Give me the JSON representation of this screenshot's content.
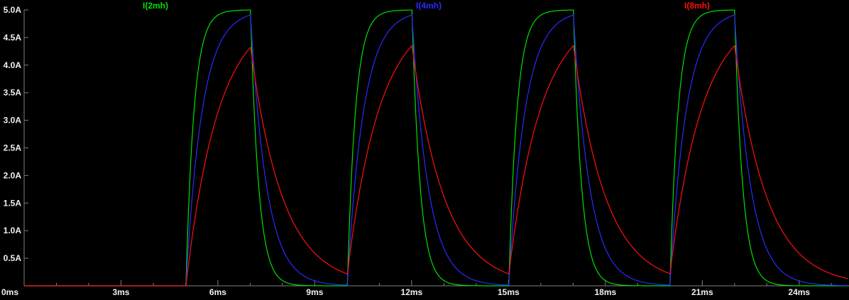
{
  "chart_data": {
    "type": "line",
    "title": "",
    "x_unit": "ms",
    "y_unit": "A",
    "xlim": [
      0,
      25.5
    ],
    "ylim": [
      0,
      5
    ],
    "grid": false,
    "legend_position": "top",
    "colors": {
      "background": "#000000",
      "axis": "#808080",
      "tick_label": "#f0f0f0"
    },
    "x_major_ticks": [
      {
        "t": 0,
        "label": "0ms"
      },
      {
        "t": 3,
        "label": "3ms"
      },
      {
        "t": 6,
        "label": "6ms"
      },
      {
        "t": 9,
        "label": "9ms"
      },
      {
        "t": 12,
        "label": "12ms"
      },
      {
        "t": 15,
        "label": "15ms"
      },
      {
        "t": 18,
        "label": "18ms"
      },
      {
        "t": 21,
        "label": "21ms"
      },
      {
        "t": 24,
        "label": "24ms"
      }
    ],
    "x_minor_step_ms": 1,
    "y_ticks": [
      {
        "v": 5.0,
        "label": "5.0A"
      },
      {
        "v": 4.5,
        "label": "4.5A"
      },
      {
        "v": 4.0,
        "label": "4.0A"
      },
      {
        "v": 3.5,
        "label": "3.5A"
      },
      {
        "v": 3.0,
        "label": "3.0A"
      },
      {
        "v": 2.5,
        "label": "2.5A"
      },
      {
        "v": 2.0,
        "label": "2.0A"
      },
      {
        "v": 1.5,
        "label": "1.5A"
      },
      {
        "v": 1.0,
        "label": "1.0A"
      },
      {
        "v": 0.5,
        "label": "0.5A"
      }
    ],
    "pulse": {
      "amplitude_A": 5,
      "on_start_times_ms": [
        5,
        10,
        15,
        20
      ],
      "on_duration_ms": 2,
      "period_ms": 5
    },
    "peak_times_ms": [
      7,
      12,
      17,
      22
    ],
    "series": [
      {
        "name": "I(2mh)",
        "color": "#00e000",
        "tau_ms": 0.25,
        "steady_peak_A": 5.0,
        "value_before_5ms_A": 0
      },
      {
        "name": "I(4mh)",
        "color": "#2a2aff",
        "tau_ms": 0.5,
        "steady_peak_A": 4.9,
        "value_before_5ms_A": 0
      },
      {
        "name": "I(8mh)",
        "color": "#ff1010",
        "tau_ms": 1.0,
        "steady_peak_A": 4.3,
        "value_before_5ms_A": 0
      }
    ]
  }
}
